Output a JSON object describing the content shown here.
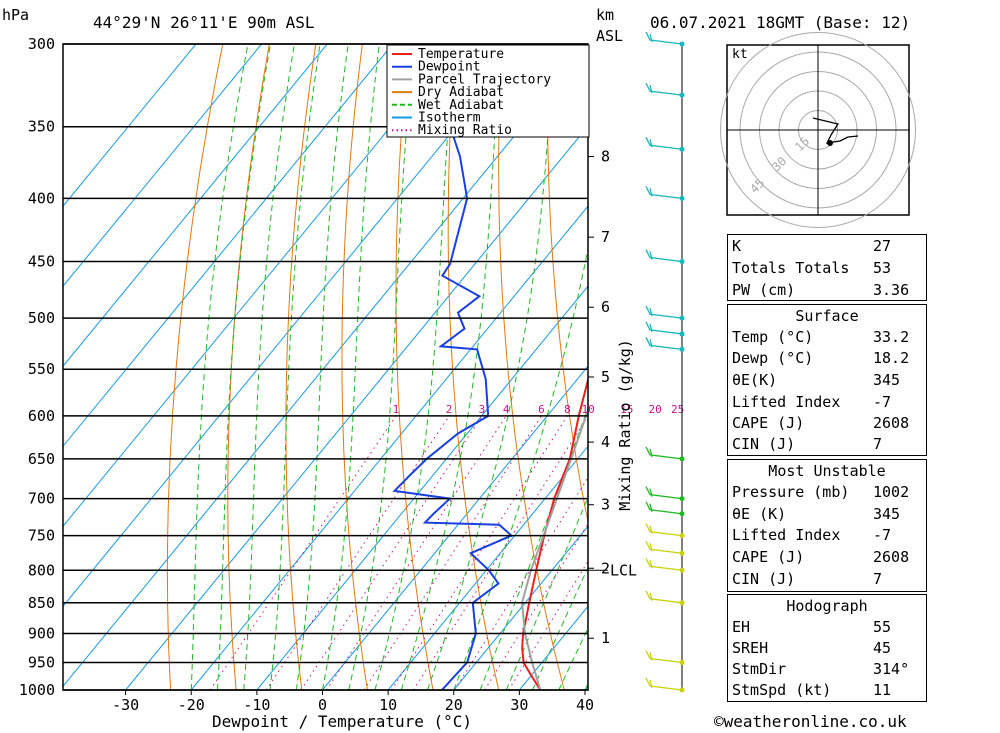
{
  "header": {
    "pressure_unit": "hPa",
    "location": "44°29'N 26°11'E 90m ASL",
    "height_unit_line1": "km",
    "height_unit_line2": "ASL",
    "datetime": "06.07.2021 18GMT (Base: 12)"
  },
  "copyright": "©weatheronline.co.uk",
  "chart_data": {
    "type": "line",
    "subtype": "skew-T log-P diagram",
    "xlabel": "Dewpoint / Temperature (°C)",
    "ylabel": "hPa",
    "right_axis_label": "Mixing Ratio (g/kg)",
    "x_ticks": [
      -30,
      -20,
      -10,
      0,
      10,
      20,
      30,
      40
    ],
    "pressure_levels": [
      300,
      350,
      400,
      450,
      500,
      550,
      600,
      650,
      700,
      750,
      800,
      850,
      900,
      950,
      1000
    ],
    "xlim": [
      -40,
      40
    ],
    "ylim_hpa": [
      1000,
      300
    ],
    "height_km_ticks": [
      {
        "label": "1",
        "hpa": 908
      },
      {
        "label": "2",
        "hpa": 797
      },
      {
        "label": "3",
        "hpa": 708
      },
      {
        "label": "4",
        "hpa": 630
      },
      {
        "label": "5",
        "hpa": 558
      },
      {
        "label": "6",
        "hpa": 490
      },
      {
        "label": "7",
        "hpa": 430
      },
      {
        "label": "8",
        "hpa": 370
      }
    ],
    "lcl": {
      "label": "LCL",
      "hpa": 800
    },
    "mixing_ratio_labels": [
      "1",
      "2",
      "3",
      "4",
      "6",
      "8",
      "10",
      "15",
      "20",
      "25"
    ],
    "mixing_ratio_values": [
      1,
      2,
      3,
      4,
      6,
      8,
      10,
      15,
      20,
      25
    ],
    "legend": [
      {
        "name": "Temperature",
        "color": "#e8211c",
        "style": "solid"
      },
      {
        "name": "Dewpoint",
        "color": "#1a3fe0",
        "style": "solid"
      },
      {
        "name": "Parcel Trajectory",
        "color": "#a0a0a0",
        "style": "solid"
      },
      {
        "name": "Dry Adiabat",
        "color": "#e07a10",
        "style": "solid"
      },
      {
        "name": "Wet Adiabat",
        "color": "#1fb81f",
        "style": "dashed"
      },
      {
        "name": "Isotherm",
        "color": "#1a9ae0",
        "style": "solid"
      },
      {
        "name": "Mixing Ratio",
        "color": "#c0148c",
        "style": "dotted"
      }
    ],
    "series": [
      {
        "name": "Temperature",
        "color": "#e8211c",
        "points": [
          [
            1000,
            33.2
          ],
          [
            975,
            30.2
          ],
          [
            950,
            27.2
          ],
          [
            925,
            25.2
          ],
          [
            900,
            23.5
          ],
          [
            850,
            20.6
          ],
          [
            800,
            17.6
          ],
          [
            750,
            14.5
          ],
          [
            700,
            11.4
          ],
          [
            650,
            8.8
          ],
          [
            600,
            4.8
          ],
          [
            550,
            0.8
          ],
          [
            525,
            -1.5
          ],
          [
            500,
            -3.3
          ],
          [
            450,
            -8.5
          ],
          [
            400,
            -14.8
          ],
          [
            350,
            -22.8
          ],
          [
            300,
            -31.6
          ]
        ]
      },
      {
        "name": "Dewpoint",
        "color": "#1a3fe0",
        "points": [
          [
            1000,
            18.2
          ],
          [
            950,
            18.6
          ],
          [
            900,
            16.3
          ],
          [
            850,
            12.0
          ],
          [
            820,
            13.5
          ],
          [
            800,
            10.4
          ],
          [
            775,
            5.5
          ],
          [
            750,
            9.5
          ],
          [
            735,
            6.3
          ],
          [
            732,
            -5.3
          ],
          [
            720,
            -5.1
          ],
          [
            700,
            -4.5
          ],
          [
            690,
            -13.9
          ],
          [
            670,
            -13.5
          ],
          [
            650,
            -13.0
          ],
          [
            620,
            -11.4
          ],
          [
            600,
            -9.0
          ],
          [
            560,
            -14.0
          ],
          [
            530,
            -19.0
          ],
          [
            527,
            -24.9
          ],
          [
            510,
            -23.5
          ],
          [
            495,
            -26.5
          ],
          [
            480,
            -25.3
          ],
          [
            462,
            -33.5
          ],
          [
            452,
            -33.8
          ],
          [
            400,
            -39.4
          ],
          [
            370,
            -45.7
          ],
          [
            300,
            -65.4
          ]
        ]
      },
      {
        "name": "Parcel Trajectory",
        "color": "#a0a0a0",
        "points": [
          [
            1000,
            33.2
          ],
          [
            950,
            28.5
          ],
          [
            900,
            23.8
          ],
          [
            850,
            19.5
          ],
          [
            800,
            16.8
          ],
          [
            750,
            14.4
          ],
          [
            700,
            11.8
          ],
          [
            650,
            9.0
          ],
          [
            600,
            5.9
          ],
          [
            550,
            2.4
          ],
          [
            500,
            -1.5
          ],
          [
            450,
            -5.9
          ],
          [
            400,
            -11.5
          ],
          [
            365,
            -15.9
          ]
        ]
      }
    ],
    "wind_barbs_colors": [
      "#18b8b8",
      "#1fb81f",
      "#c8d20a"
    ]
  },
  "hodograph": {
    "unit": "kt",
    "ring_labels": [
      "15",
      "30",
      "45"
    ]
  },
  "indices": {
    "rows": [
      {
        "label": "K",
        "value": "27"
      },
      {
        "label": "Totals Totals",
        "value": "53"
      },
      {
        "label": "PW (cm)",
        "value": "3.36"
      }
    ]
  },
  "surface": {
    "title": "Surface",
    "rows": [
      {
        "label": "Temp (°C)",
        "value": "33.2"
      },
      {
        "label": "Dewp (°C)",
        "value": "18.2"
      },
      {
        "label": "θE(K)",
        "value": "345"
      },
      {
        "label": "Lifted Index",
        "value": "-7"
      },
      {
        "label": "CAPE (J)",
        "value": "2608"
      },
      {
        "label": "CIN (J)",
        "value": "7"
      }
    ]
  },
  "most_unstable": {
    "title": "Most Unstable",
    "rows": [
      {
        "label": "Pressure (mb)",
        "value": "1002"
      },
      {
        "label": "θE (K)",
        "value": "345"
      },
      {
        "label": "Lifted Index",
        "value": "-7"
      },
      {
        "label": "CAPE (J)",
        "value": "2608"
      },
      {
        "label": "CIN (J)",
        "value": "7"
      }
    ]
  },
  "hodograph_table": {
    "title": "Hodograph",
    "rows": [
      {
        "label": "EH",
        "value": "55"
      },
      {
        "label": "SREH",
        "value": "45"
      },
      {
        "label": "StmDir",
        "value": "314°"
      },
      {
        "label": "StmSpd (kt)",
        "value": "11"
      }
    ]
  }
}
